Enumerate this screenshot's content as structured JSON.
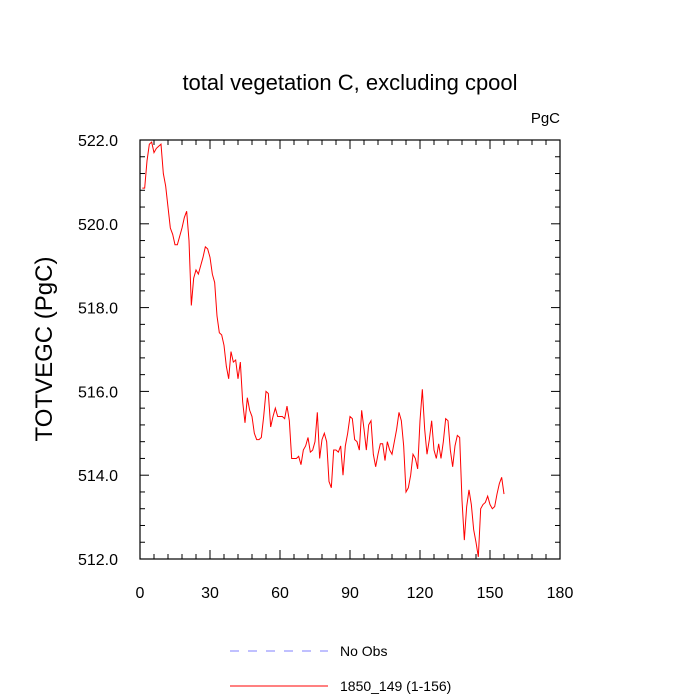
{
  "chart_data": {
    "type": "line",
    "title": "total vegetation C, excluding cpool",
    "units_label": "PgC",
    "y_label": "TOTVEGC  (PgC)",
    "x": [
      1,
      2,
      3,
      4,
      5,
      6,
      7,
      8,
      9,
      10,
      11,
      12,
      13,
      14,
      15,
      16,
      17,
      18,
      19,
      20,
      21,
      22,
      23,
      24,
      25,
      26,
      27,
      28,
      29,
      30,
      31,
      32,
      33,
      34,
      35,
      36,
      37,
      38,
      39,
      40,
      41,
      42,
      43,
      44,
      45,
      46,
      47,
      48,
      49,
      50,
      51,
      52,
      53,
      54,
      55,
      56,
      57,
      58,
      59,
      60,
      61,
      62,
      63,
      64,
      65,
      66,
      67,
      68,
      69,
      70,
      71,
      72,
      73,
      74,
      75,
      76,
      77,
      78,
      79,
      80,
      81,
      82,
      83,
      84,
      85,
      86,
      87,
      88,
      89,
      90,
      91,
      92,
      93,
      94,
      95,
      96,
      97,
      98,
      99,
      100,
      101,
      102,
      103,
      104,
      105,
      106,
      107,
      108,
      109,
      110,
      111,
      112,
      113,
      114,
      115,
      116,
      117,
      118,
      119,
      120,
      121,
      122,
      123,
      124,
      125,
      126,
      127,
      128,
      129,
      130,
      131,
      132,
      133,
      134,
      135,
      136,
      137,
      138,
      139,
      140,
      141,
      142,
      143,
      144,
      145,
      146,
      147,
      148,
      149,
      150,
      151,
      152,
      153,
      154,
      155,
      156
    ],
    "series": [
      {
        "name": "1850_149 (1-156)",
        "color": "#ff0000",
        "values": [
          520.85,
          520.85,
          521.5,
          521.9,
          521.95,
          521.7,
          521.8,
          521.85,
          521.9,
          521.2,
          520.9,
          520.4,
          519.9,
          519.75,
          519.5,
          519.5,
          519.7,
          519.9,
          520.15,
          520.3,
          519.6,
          518.05,
          518.7,
          518.9,
          518.8,
          519.0,
          519.2,
          519.45,
          519.4,
          519.2,
          518.8,
          518.6,
          517.8,
          517.4,
          517.35,
          517.1,
          516.6,
          516.3,
          516.95,
          516.7,
          516.75,
          516.3,
          516.7,
          515.75,
          515.25,
          515.85,
          515.55,
          515.4,
          515.0,
          514.85,
          514.85,
          514.9,
          515.4,
          516.0,
          515.95,
          515.15,
          515.4,
          515.6,
          515.4,
          515.4,
          515.4,
          515.35,
          515.65,
          515.3,
          514.4,
          514.4,
          514.4,
          514.45,
          514.25,
          514.6,
          514.7,
          514.9,
          514.55,
          514.6,
          514.8,
          515.5,
          514.4,
          514.85,
          515.0,
          514.8,
          513.85,
          513.7,
          514.6,
          514.6,
          514.55,
          514.7,
          514.0,
          514.7,
          515.0,
          515.4,
          515.35,
          514.85,
          514.8,
          514.6,
          515.55,
          515.1,
          514.6,
          515.2,
          515.3,
          514.5,
          514.2,
          514.5,
          514.75,
          514.75,
          514.35,
          514.8,
          514.6,
          514.5,
          514.8,
          515.1,
          515.5,
          515.3,
          514.7,
          513.6,
          513.7,
          514.0,
          514.5,
          514.4,
          514.15,
          515.3,
          516.05,
          515.1,
          514.5,
          514.85,
          515.3,
          514.6,
          514.4,
          514.75,
          514.4,
          514.8,
          515.35,
          515.3,
          514.6,
          514.2,
          514.7,
          514.95,
          514.9,
          513.4,
          512.45,
          513.25,
          513.65,
          513.3,
          512.7,
          512.4,
          512.05,
          513.2,
          513.3,
          513.35,
          513.5,
          513.3,
          513.2,
          513.25,
          513.55,
          513.8,
          513.95,
          513.55
        ]
      }
    ],
    "extra_legend": {
      "name": "No Obs",
      "color": "#8080ff",
      "dashed": true
    },
    "xlim": [
      0,
      180
    ],
    "xticks": [
      0,
      30,
      60,
      90,
      120,
      150,
      180
    ],
    "ylim": [
      512,
      522
    ],
    "yticks": [
      {
        "value": 512,
        "label": "512.0"
      },
      {
        "value": 514,
        "label": "514.0"
      },
      {
        "value": 516,
        "label": "516.0"
      },
      {
        "value": 518,
        "label": "518.0"
      },
      {
        "value": 520,
        "label": "520.0"
      },
      {
        "value": 522,
        "label": "522.0"
      }
    ],
    "grid": false
  }
}
